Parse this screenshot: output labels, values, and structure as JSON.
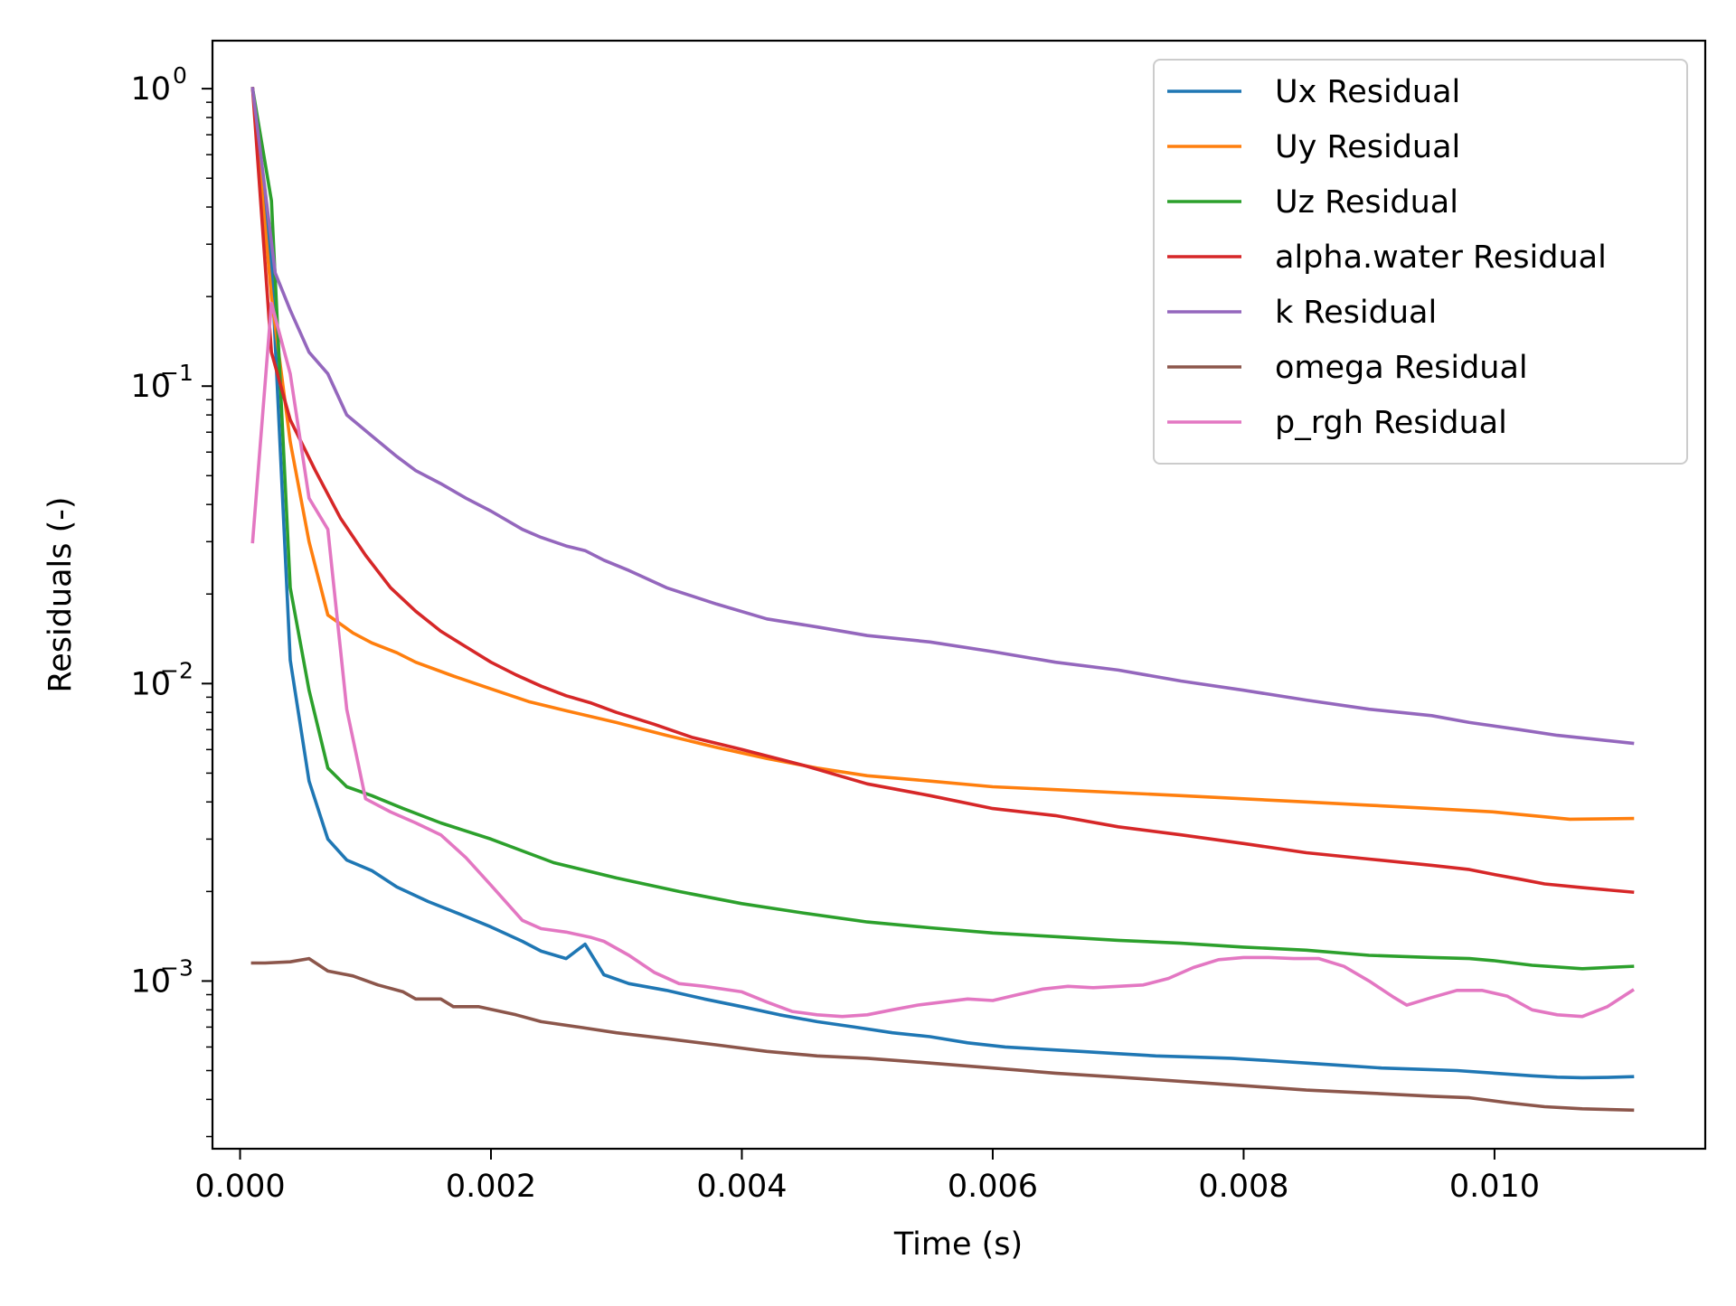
{
  "chart_data": {
    "type": "line",
    "title": "",
    "xlabel": "Time (s)",
    "ylabel": "Residuals (-)",
    "xscale": "linear",
    "yscale": "log",
    "xlim": [
      -0.00022,
      0.01168
    ],
    "ylim": [
      0.000273,
      1.45
    ],
    "grid": false,
    "legend_position": "top-right",
    "x_ticks": [
      {
        "value": 0.0,
        "label": "0.000"
      },
      {
        "value": 0.002,
        "label": "0.002"
      },
      {
        "value": 0.004,
        "label": "0.004"
      },
      {
        "value": 0.006,
        "label": "0.006"
      },
      {
        "value": 0.008,
        "label": "0.008"
      },
      {
        "value": 0.01,
        "label": "0.010"
      }
    ],
    "y_ticks": [
      {
        "value": 1,
        "base": "10",
        "exp": "0"
      },
      {
        "value": 0.1,
        "base": "10",
        "exp": "−1"
      },
      {
        "value": 0.01,
        "base": "10",
        "exp": "−2"
      },
      {
        "value": 0.001,
        "base": "10",
        "exp": "−3"
      }
    ],
    "series": [
      {
        "name": "Ux Residual",
        "color": "#1f77b4",
        "x": [
          0.0001,
          0.00025,
          0.0004,
          0.00055,
          0.0007,
          0.00085,
          0.00105,
          0.00125,
          0.0015,
          0.00175,
          0.002,
          0.00225,
          0.0024,
          0.0026,
          0.00275,
          0.0029,
          0.0031,
          0.0034,
          0.0037,
          0.004,
          0.0043,
          0.0046,
          0.0049,
          0.0052,
          0.0055,
          0.0058,
          0.0061,
          0.0064,
          0.0067,
          0.007,
          0.0073,
          0.0076,
          0.0079,
          0.0082,
          0.0085,
          0.0088,
          0.0091,
          0.0094,
          0.0097,
          0.01,
          0.0103,
          0.0105,
          0.0107,
          0.0109,
          0.0111
        ],
        "y": [
          1.0,
          0.26,
          0.012,
          0.0047,
          0.003,
          0.00255,
          0.00235,
          0.00207,
          0.00185,
          0.00168,
          0.00152,
          0.00136,
          0.00126,
          0.00119,
          0.00133,
          0.00105,
          0.00098,
          0.00093,
          0.00087,
          0.00082,
          0.00077,
          0.00073,
          0.0007,
          0.00067,
          0.00065,
          0.00062,
          0.0006,
          0.00059,
          0.00058,
          0.00057,
          0.00056,
          0.000555,
          0.00055,
          0.00054,
          0.00053,
          0.00052,
          0.00051,
          0.000505,
          0.0005,
          0.00049,
          0.00048,
          0.000475,
          0.000473,
          0.000474,
          0.000477
        ]
      },
      {
        "name": "Uy Residual",
        "color": "#ff7f0e",
        "x": [
          0.0001,
          0.00025,
          0.0004,
          0.00055,
          0.0007,
          0.0009,
          0.00105,
          0.00125,
          0.0014,
          0.0017,
          0.002,
          0.0023,
          0.0026,
          0.003,
          0.0034,
          0.0038,
          0.0042,
          0.0046,
          0.005,
          0.0055,
          0.006,
          0.0065,
          0.007,
          0.0075,
          0.008,
          0.0085,
          0.009,
          0.0095,
          0.01,
          0.0103,
          0.0106,
          0.0111
        ],
        "y": [
          1.0,
          0.2,
          0.065,
          0.03,
          0.017,
          0.0148,
          0.0137,
          0.0127,
          0.0118,
          0.0106,
          0.0096,
          0.0087,
          0.0081,
          0.0074,
          0.0067,
          0.0061,
          0.0056,
          0.0052,
          0.0049,
          0.0047,
          0.0045,
          0.0044,
          0.0043,
          0.0042,
          0.0041,
          0.004,
          0.0039,
          0.0038,
          0.0037,
          0.0036,
          0.0035,
          0.00352
        ]
      },
      {
        "name": "Uz Residual",
        "color": "#2ca02c",
        "x": [
          0.0001,
          0.00025,
          0.0004,
          0.00055,
          0.0007,
          0.00085,
          0.00105,
          0.0013,
          0.0016,
          0.002,
          0.0025,
          0.003,
          0.0035,
          0.004,
          0.0045,
          0.005,
          0.0055,
          0.006,
          0.0065,
          0.007,
          0.0075,
          0.008,
          0.0085,
          0.009,
          0.0095,
          0.0098,
          0.01,
          0.0103,
          0.0107,
          0.0111
        ],
        "y": [
          1.0,
          0.42,
          0.021,
          0.0095,
          0.0052,
          0.0045,
          0.0042,
          0.0038,
          0.0034,
          0.003,
          0.0025,
          0.00222,
          0.002,
          0.00182,
          0.00169,
          0.00158,
          0.00151,
          0.00145,
          0.00141,
          0.00137,
          0.00134,
          0.0013,
          0.00127,
          0.00122,
          0.0012,
          0.00119,
          0.00117,
          0.00113,
          0.0011,
          0.00112
        ]
      },
      {
        "name": "alpha.water Residual",
        "color": "#d62728",
        "x": [
          0.0001,
          0.00025,
          0.0004,
          0.0006,
          0.0008,
          0.001,
          0.0012,
          0.0014,
          0.0016,
          0.0018,
          0.002,
          0.0022,
          0.0024,
          0.0026,
          0.0028,
          0.003,
          0.0033,
          0.0036,
          0.004,
          0.0045,
          0.005,
          0.0055,
          0.006,
          0.0065,
          0.007,
          0.0075,
          0.008,
          0.0085,
          0.009,
          0.0095,
          0.0098,
          0.01,
          0.0102,
          0.0104,
          0.0107,
          0.0111
        ],
        "y": [
          1.0,
          0.13,
          0.077,
          0.052,
          0.036,
          0.027,
          0.021,
          0.0175,
          0.015,
          0.0133,
          0.0118,
          0.0107,
          0.0098,
          0.0091,
          0.0086,
          0.008,
          0.0073,
          0.0066,
          0.006,
          0.0053,
          0.0046,
          0.0042,
          0.0038,
          0.0036,
          0.0033,
          0.0031,
          0.0029,
          0.0027,
          0.00257,
          0.00245,
          0.00237,
          0.00228,
          0.0022,
          0.00212,
          0.00206,
          0.00199
        ]
      },
      {
        "name": "k Residual",
        "color": "#9467bd",
        "x": [
          0.0001,
          0.00028,
          0.0004,
          0.00055,
          0.0007,
          0.00085,
          0.00105,
          0.00125,
          0.0014,
          0.0016,
          0.0018,
          0.002,
          0.00225,
          0.0024,
          0.0026,
          0.00275,
          0.0029,
          0.0031,
          0.0034,
          0.0038,
          0.0042,
          0.0046,
          0.005,
          0.0055,
          0.006,
          0.0065,
          0.007,
          0.0075,
          0.008,
          0.0085,
          0.009,
          0.0095,
          0.0098,
          0.0102,
          0.0105,
          0.0108,
          0.0111
        ],
        "y": [
          1.0,
          0.24,
          0.18,
          0.13,
          0.11,
          0.08,
          0.068,
          0.058,
          0.052,
          0.047,
          0.042,
          0.038,
          0.033,
          0.031,
          0.029,
          0.028,
          0.026,
          0.024,
          0.021,
          0.0185,
          0.0165,
          0.0155,
          0.0145,
          0.0138,
          0.0128,
          0.0118,
          0.0111,
          0.0102,
          0.0095,
          0.0088,
          0.0082,
          0.0078,
          0.0074,
          0.007,
          0.0067,
          0.0065,
          0.0063
        ]
      },
      {
        "name": "omega Residual",
        "color": "#8c564b",
        "x": [
          0.0001,
          0.0002,
          0.0004,
          0.00055,
          0.0007,
          0.0009,
          0.0011,
          0.0013,
          0.0014,
          0.0016,
          0.0017,
          0.0019,
          0.0022,
          0.0024,
          0.0027,
          0.003,
          0.0034,
          0.0038,
          0.0042,
          0.0046,
          0.005,
          0.0055,
          0.006,
          0.0065,
          0.007,
          0.0075,
          0.008,
          0.0085,
          0.009,
          0.0095,
          0.0098,
          0.0101,
          0.0104,
          0.0107,
          0.0111
        ],
        "y": [
          0.00115,
          0.00115,
          0.00116,
          0.00119,
          0.00108,
          0.00104,
          0.00097,
          0.00092,
          0.00087,
          0.00087,
          0.00082,
          0.00082,
          0.00077,
          0.00073,
          0.0007,
          0.00067,
          0.00064,
          0.00061,
          0.00058,
          0.00056,
          0.00055,
          0.00053,
          0.00051,
          0.00049,
          0.000475,
          0.00046,
          0.000445,
          0.00043,
          0.00042,
          0.00041,
          0.000405,
          0.00039,
          0.000378,
          0.000372,
          0.000368
        ]
      },
      {
        "name": "p_rgh Residual",
        "color": "#e377c2",
        "x": [
          0.0001,
          0.00025,
          0.0004,
          0.00055,
          0.0007,
          0.00085,
          0.001,
          0.0012,
          0.0014,
          0.0016,
          0.0018,
          0.002,
          0.00225,
          0.0024,
          0.0026,
          0.0028,
          0.0029,
          0.0031,
          0.0033,
          0.0035,
          0.0037,
          0.004,
          0.0042,
          0.0044,
          0.0046,
          0.0048,
          0.005,
          0.0052,
          0.0054,
          0.0056,
          0.0058,
          0.006,
          0.0062,
          0.0064,
          0.0066,
          0.0068,
          0.007,
          0.0072,
          0.0074,
          0.0076,
          0.0078,
          0.008,
          0.0082,
          0.0084,
          0.0086,
          0.0088,
          0.009,
          0.0092,
          0.0093,
          0.0095,
          0.0097,
          0.0099,
          0.0101,
          0.0103,
          0.0105,
          0.0107,
          0.0109,
          0.0111
        ],
        "y": [
          0.03,
          0.19,
          0.11,
          0.042,
          0.033,
          0.0082,
          0.0041,
          0.0037,
          0.0034,
          0.0031,
          0.0026,
          0.0021,
          0.0016,
          0.0015,
          0.00146,
          0.0014,
          0.00136,
          0.00122,
          0.00107,
          0.00098,
          0.00096,
          0.00092,
          0.00085,
          0.00079,
          0.00077,
          0.00076,
          0.00077,
          0.0008,
          0.00083,
          0.00085,
          0.00087,
          0.00086,
          0.0009,
          0.00094,
          0.00096,
          0.00095,
          0.00096,
          0.00097,
          0.00102,
          0.00111,
          0.00118,
          0.0012,
          0.0012,
          0.00119,
          0.00119,
          0.00112,
          0.001,
          0.00088,
          0.00083,
          0.00088,
          0.00093,
          0.00093,
          0.00089,
          0.0008,
          0.00077,
          0.00076,
          0.00082,
          0.00093
        ]
      }
    ]
  }
}
